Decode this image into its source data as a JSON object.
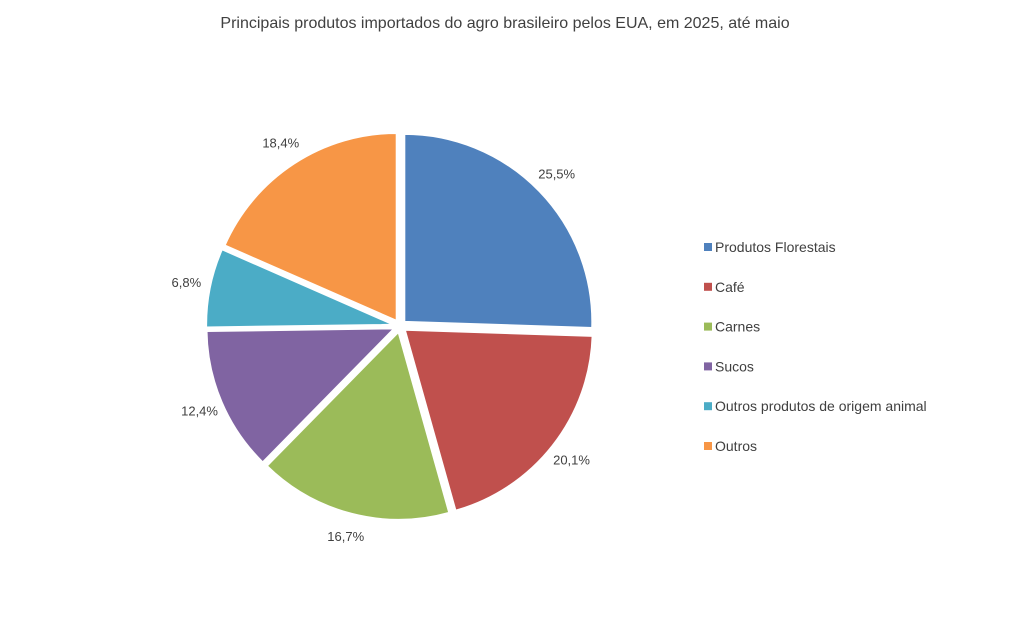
{
  "chart_data": {
    "type": "pie",
    "title": "Principais produtos importados do agro brasileiro pelos EUA, em 2025, até maio",
    "categories": [
      "Produtos Florestais",
      "Café",
      "Carnes",
      "Sucos",
      "Outros produtos de origem animal",
      "Outros"
    ],
    "values": [
      25.5,
      20.1,
      16.7,
      12.4,
      6.8,
      18.4
    ],
    "labels": [
      "25,5%",
      "20,1%",
      "16,7%",
      "12,4%",
      "6,8%",
      "18,4%"
    ],
    "colors": [
      "#4F81BD",
      "#C0504D",
      "#9BBB59",
      "#8064A2",
      "#4BACC6",
      "#F79646"
    ],
    "exploded": true,
    "legend_position": "right",
    "start": "12 o'clock",
    "direction": "clockwise"
  }
}
